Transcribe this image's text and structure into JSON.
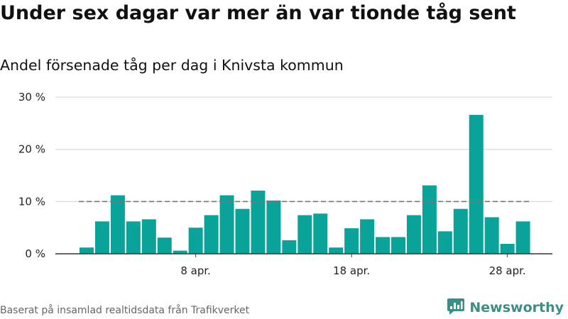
{
  "title": "Under sex dagar var mer än var tionde tåg sent",
  "subtitle": "Andel försenade tåg per dag i Knivsta kommun",
  "source": "Baserat på insamlad realtidsdata från Trafikverket",
  "brand": {
    "name": "Newsworthy",
    "icon": "newsworthy-logo-icon",
    "color": "#3a8f87"
  },
  "colors": {
    "bar": "#0aa399",
    "reference_line": "#777777",
    "grid": "#dddddd",
    "axis": "#333333"
  },
  "chart_data": {
    "type": "bar",
    "x_type": "date",
    "x": [
      "2023-04-01",
      "2023-04-02",
      "2023-04-03",
      "2023-04-04",
      "2023-04-05",
      "2023-04-06",
      "2023-04-07",
      "2023-04-08",
      "2023-04-09",
      "2023-04-10",
      "2023-04-11",
      "2023-04-12",
      "2023-04-13",
      "2023-04-14",
      "2023-04-15",
      "2023-04-16",
      "2023-04-17",
      "2023-04-18",
      "2023-04-19",
      "2023-04-20",
      "2023-04-21",
      "2023-04-22",
      "2023-04-23",
      "2023-04-24",
      "2023-04-25",
      "2023-04-26",
      "2023-04-27",
      "2023-04-28",
      "2023-04-29"
    ],
    "values": [
      1.2,
      6.2,
      11.2,
      6.2,
      6.6,
      3.1,
      0.6,
      5.0,
      7.4,
      11.2,
      8.6,
      12.1,
      10.2,
      2.6,
      7.4,
      7.7,
      1.2,
      4.9,
      6.6,
      3.2,
      3.2,
      7.4,
      13.1,
      4.3,
      8.6,
      26.6,
      7.0,
      1.9,
      6.2
    ],
    "reference_line": {
      "value": 10
    },
    "y_ticks": [
      0,
      10,
      20,
      30
    ],
    "y_tick_labels": [
      "0 %",
      "10 %",
      "20 %",
      "30 %"
    ],
    "x_tick_dates": [
      "2023-04-08",
      "2023-04-18",
      "2023-04-28"
    ],
    "x_tick_labels": [
      "8 apr.",
      "18 apr.",
      "28 apr."
    ],
    "ylim": [
      0,
      30
    ],
    "grid": true,
    "legend": "none"
  }
}
